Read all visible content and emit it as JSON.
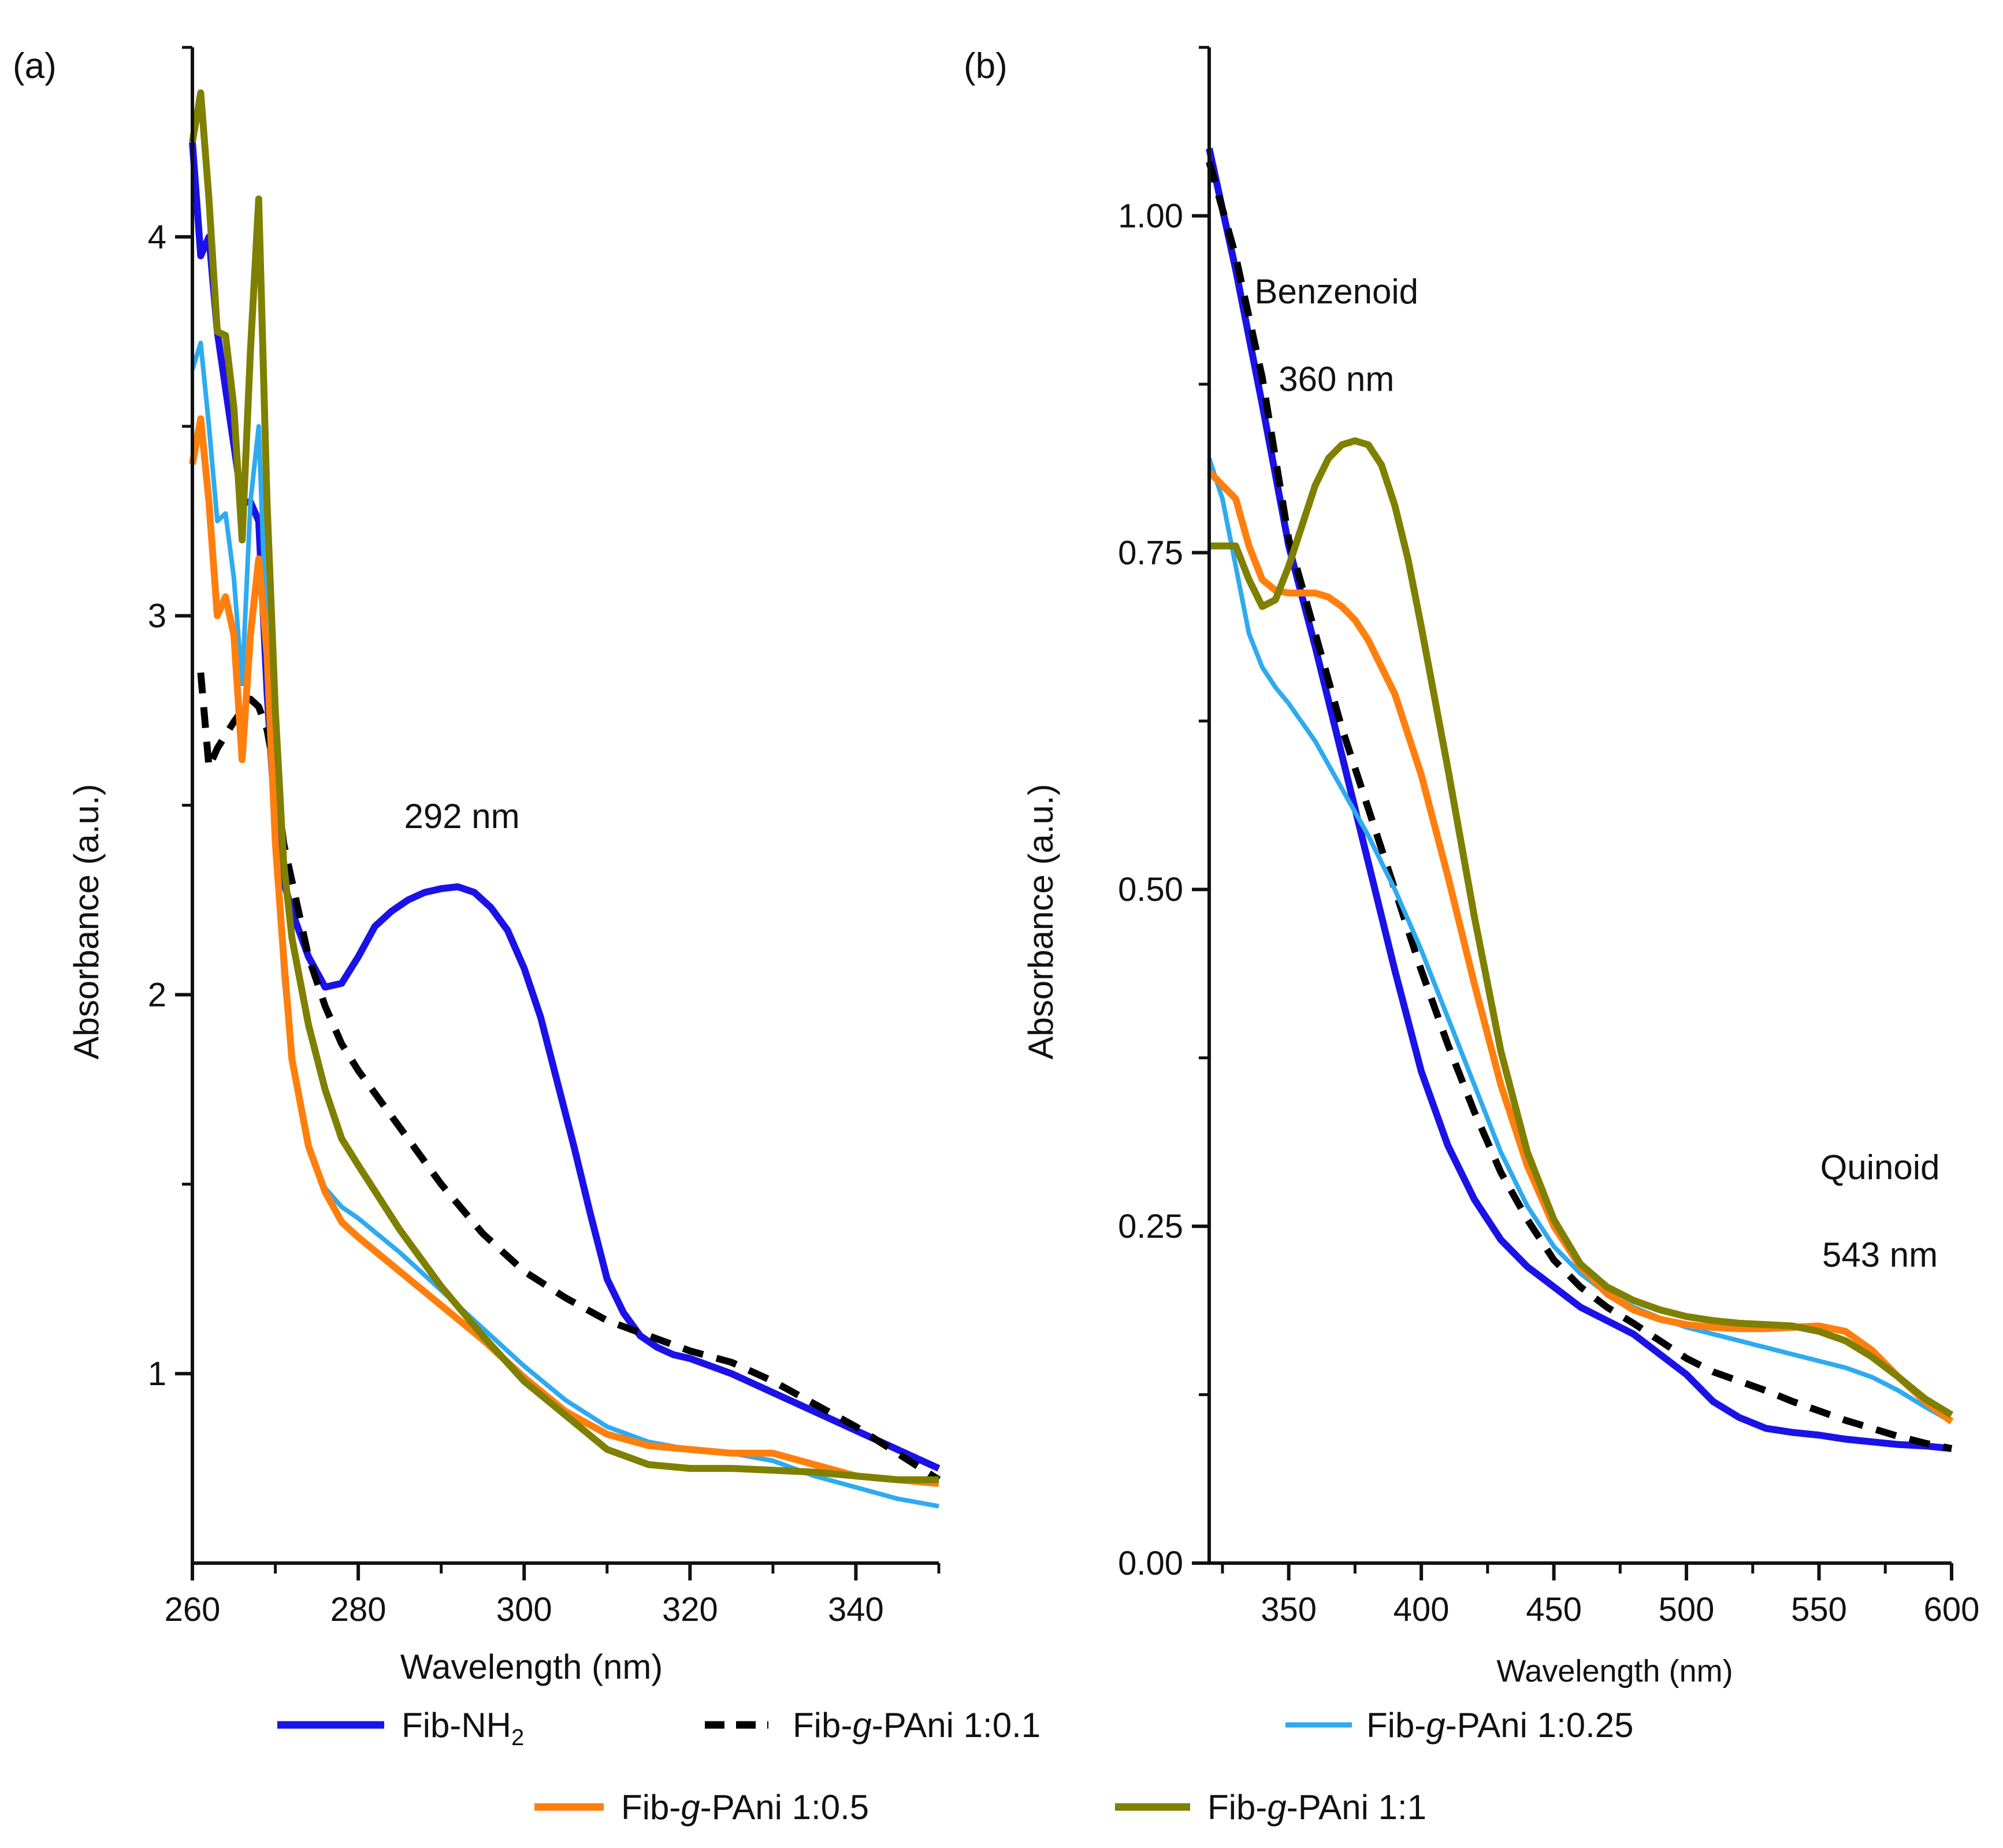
{
  "chart_data": [
    {
      "panel_label": "(a)",
      "type": "line",
      "xlabel": "Wavelength (nm)",
      "ylabel": "Absorbance (a.u.)",
      "xlim": [
        260,
        350
      ],
      "ylim": [
        0.5,
        4.5
      ],
      "x_major_ticks": [
        260,
        280,
        300,
        320,
        340
      ],
      "x_minor_ticks": [
        270,
        290,
        310,
        330,
        350
      ],
      "y_major_ticks": [
        1,
        2,
        3,
        4
      ],
      "y_minor_ticks": [
        1.5,
        2.5,
        3.5,
        4.5
      ],
      "x_tick_labels": [
        "260",
        "280",
        "300",
        "320",
        "340"
      ],
      "y_tick_labels": [
        "1",
        "2",
        "3",
        "4"
      ],
      "annotations": [
        {
          "text": "292 nm",
          "x": 292.5,
          "y": 2.44
        }
      ],
      "series": [
        {
          "name": "Fib-NH2",
          "x": [
            260,
            261,
            262,
            263,
            264,
            265,
            266,
            267,
            268,
            269,
            270,
            271,
            272,
            274,
            276,
            278,
            280,
            282,
            284,
            286,
            288,
            290,
            292,
            294,
            296,
            298,
            300,
            302,
            304,
            306,
            308,
            310,
            312,
            314,
            316,
            318,
            320,
            325,
            330,
            335,
            340,
            345,
            350
          ],
          "y": [
            4.25,
            3.95,
            4.0,
            3.75,
            3.6,
            3.45,
            3.3,
            3.3,
            3.25,
            2.8,
            2.45,
            2.3,
            2.22,
            2.1,
            2.02,
            2.03,
            2.1,
            2.18,
            2.22,
            2.25,
            2.27,
            2.28,
            2.285,
            2.27,
            2.23,
            2.17,
            2.07,
            1.94,
            1.77,
            1.6,
            1.42,
            1.25,
            1.16,
            1.1,
            1.07,
            1.05,
            1.04,
            1.0,
            0.95,
            0.9,
            0.85,
            0.8,
            0.75
          ]
        },
        {
          "name": "Fib-g-PAni 1:0.1",
          "x": [
            261,
            262,
            263,
            265,
            266,
            267,
            268,
            269,
            270,
            271,
            272,
            274,
            276,
            278,
            280,
            285,
            290,
            295,
            300,
            305,
            310,
            315,
            320,
            325,
            330,
            335,
            340,
            345,
            350
          ],
          "y": [
            2.85,
            2.6,
            2.65,
            2.72,
            2.75,
            2.78,
            2.76,
            2.7,
            2.58,
            2.4,
            2.3,
            2.1,
            1.97,
            1.87,
            1.8,
            1.65,
            1.5,
            1.37,
            1.27,
            1.2,
            1.14,
            1.1,
            1.06,
            1.03,
            0.98,
            0.92,
            0.86,
            0.79,
            0.72
          ]
        },
        {
          "name": "Fib-g-PAni 1:0.25",
          "x": [
            260,
            261,
            262,
            263,
            264,
            265,
            266,
            267,
            268,
            269,
            270,
            271,
            272,
            274,
            276,
            278,
            280,
            285,
            290,
            295,
            300,
            305,
            310,
            315,
            320,
            325,
            330,
            335,
            340,
            345,
            350
          ],
          "y": [
            3.65,
            3.72,
            3.5,
            3.25,
            3.27,
            3.1,
            2.82,
            3.3,
            3.5,
            2.9,
            2.4,
            2.05,
            1.82,
            1.6,
            1.49,
            1.44,
            1.41,
            1.32,
            1.22,
            1.12,
            1.02,
            0.93,
            0.86,
            0.82,
            0.8,
            0.79,
            0.77,
            0.73,
            0.7,
            0.67,
            0.65
          ]
        },
        {
          "name": "Fib-g-PAni 1:0.5",
          "x": [
            260,
            261,
            262,
            263,
            264,
            265,
            266,
            267,
            268,
            269,
            270,
            271,
            272,
            274,
            276,
            278,
            280,
            285,
            290,
            295,
            300,
            305,
            310,
            315,
            320,
            325,
            330,
            335,
            340,
            345,
            350
          ],
          "y": [
            3.4,
            3.52,
            3.3,
            3.0,
            3.05,
            2.95,
            2.62,
            2.95,
            3.15,
            2.9,
            2.4,
            2.1,
            1.83,
            1.6,
            1.48,
            1.4,
            1.36,
            1.27,
            1.18,
            1.09,
            0.99,
            0.9,
            0.84,
            0.81,
            0.8,
            0.79,
            0.79,
            0.76,
            0.73,
            0.72,
            0.71
          ]
        },
        {
          "name": "Fib-g-PAni 1:1",
          "x": [
            260,
            261,
            262,
            263,
            264,
            265,
            266,
            267,
            268,
            269,
            270,
            271,
            272,
            274,
            276,
            278,
            280,
            285,
            290,
            295,
            300,
            305,
            310,
            315,
            320,
            325,
            330,
            335,
            340,
            345,
            350
          ],
          "y": [
            4.25,
            4.38,
            4.1,
            3.75,
            3.74,
            3.55,
            3.2,
            3.7,
            4.1,
            3.3,
            2.75,
            2.35,
            2.15,
            1.92,
            1.75,
            1.62,
            1.55,
            1.38,
            1.23,
            1.1,
            0.98,
            0.89,
            0.8,
            0.76,
            0.75,
            0.75,
            0.745,
            0.74,
            0.73,
            0.72,
            0.72
          ]
        }
      ]
    },
    {
      "panel_label": "(b)",
      "type": "line",
      "xlabel": "Wavelength (nm)",
      "ylabel": "Absorbance (a.u.)",
      "xlim": [
        320,
        600
      ],
      "ylim": [
        0.0,
        1.125
      ],
      "x_major_ticks": [
        350,
        400,
        450,
        500,
        550,
        600
      ],
      "x_minor_ticks": [
        325,
        375,
        425,
        475,
        525,
        575
      ],
      "y_major_ticks": [
        0.0,
        0.25,
        0.5,
        0.75,
        1.0
      ],
      "y_minor_ticks": [
        0.125,
        0.375,
        0.625,
        0.875,
        1.125
      ],
      "x_tick_labels": [
        "350",
        "400",
        "450",
        "500",
        "550",
        "600"
      ],
      "y_tick_labels": [
        "0.00",
        "0.25",
        "0.50",
        "0.75",
        "1.00"
      ],
      "annotations": [
        {
          "text": "Benzenoid",
          "x": 368,
          "y": 0.935
        },
        {
          "text": "360 nm",
          "x": 368,
          "y": 0.87
        },
        {
          "text": "Quinoid",
          "x": 573,
          "y": 0.285
        },
        {
          "text": "543 nm",
          "x": 573,
          "y": 0.22
        }
      ],
      "series": [
        {
          "name": "Fib-NH2",
          "x": [
            320,
            330,
            340,
            350,
            360,
            370,
            380,
            390,
            400,
            410,
            420,
            430,
            440,
            450,
            460,
            470,
            480,
            490,
            500,
            510,
            520,
            530,
            540,
            550,
            560,
            570,
            580,
            590,
            600
          ],
          "y": [
            1.05,
            0.96,
            0.86,
            0.755,
            0.68,
            0.6,
            0.52,
            0.44,
            0.365,
            0.31,
            0.27,
            0.24,
            0.22,
            0.205,
            0.19,
            0.18,
            0.17,
            0.155,
            0.14,
            0.12,
            0.108,
            0.1,
            0.097,
            0.095,
            0.092,
            0.09,
            0.088,
            0.087,
            0.085
          ]
        },
        {
          "name": "Fib-g-PAni 1:0.1",
          "x": [
            320,
            330,
            340,
            350,
            360,
            370,
            380,
            390,
            400,
            410,
            420,
            430,
            440,
            450,
            460,
            470,
            480,
            490,
            500,
            510,
            520,
            530,
            540,
            550,
            560,
            570,
            580,
            590,
            600
          ],
          "y": [
            1.04,
            0.97,
            0.88,
            0.76,
            0.69,
            0.62,
            0.56,
            0.5,
            0.44,
            0.385,
            0.335,
            0.29,
            0.255,
            0.225,
            0.205,
            0.19,
            0.178,
            0.165,
            0.152,
            0.142,
            0.135,
            0.128,
            0.12,
            0.113,
            0.106,
            0.1,
            0.094,
            0.089,
            0.085
          ]
        },
        {
          "name": "Fib-g-PAni 1:0.25",
          "x": [
            320,
            325,
            330,
            335,
            340,
            345,
            350,
            360,
            370,
            380,
            390,
            400,
            410,
            420,
            430,
            440,
            450,
            460,
            470,
            480,
            490,
            500,
            510,
            520,
            530,
            540,
            550,
            560,
            570,
            580,
            590,
            600
          ],
          "y": [
            0.82,
            0.79,
            0.74,
            0.69,
            0.665,
            0.65,
            0.638,
            0.61,
            0.575,
            0.54,
            0.5,
            0.455,
            0.405,
            0.355,
            0.305,
            0.265,
            0.235,
            0.215,
            0.2,
            0.19,
            0.182,
            0.175,
            0.17,
            0.165,
            0.16,
            0.155,
            0.15,
            0.145,
            0.138,
            0.128,
            0.116,
            0.105
          ]
        },
        {
          "name": "Fib-g-PAni 1:0.5",
          "x": [
            320,
            325,
            330,
            335,
            340,
            345,
            350,
            355,
            360,
            365,
            370,
            375,
            380,
            390,
            400,
            410,
            420,
            430,
            440,
            450,
            460,
            470,
            480,
            490,
            500,
            510,
            520,
            530,
            540,
            550,
            560,
            570,
            580,
            590,
            600
          ],
          "y": [
            0.81,
            0.8,
            0.79,
            0.755,
            0.73,
            0.722,
            0.72,
            0.72,
            0.72,
            0.717,
            0.71,
            0.7,
            0.685,
            0.645,
            0.585,
            0.51,
            0.43,
            0.355,
            0.295,
            0.25,
            0.22,
            0.2,
            0.188,
            0.181,
            0.177,
            0.175,
            0.174,
            0.174,
            0.175,
            0.176,
            0.172,
            0.158,
            0.138,
            0.12,
            0.105
          ]
        },
        {
          "name": "Fib-g-PAni 1:1",
          "x": [
            320,
            325,
            330,
            335,
            340,
            345,
            350,
            355,
            360,
            365,
            370,
            375,
            380,
            385,
            390,
            395,
            400,
            410,
            420,
            430,
            440,
            450,
            460,
            470,
            480,
            490,
            500,
            510,
            520,
            530,
            540,
            550,
            560,
            570,
            580,
            590,
            600
          ],
          "y": [
            0.755,
            0.755,
            0.755,
            0.73,
            0.71,
            0.715,
            0.74,
            0.77,
            0.8,
            0.82,
            0.83,
            0.833,
            0.83,
            0.815,
            0.785,
            0.745,
            0.695,
            0.59,
            0.48,
            0.38,
            0.305,
            0.255,
            0.222,
            0.205,
            0.195,
            0.188,
            0.183,
            0.18,
            0.178,
            0.177,
            0.176,
            0.172,
            0.165,
            0.153,
            0.138,
            0.122,
            0.11
          ]
        }
      ]
    }
  ],
  "legend": {
    "placement": "bottom",
    "entries": [
      {
        "label": "Fib-NH",
        "subscript": "2",
        "color": "#1a12e6",
        "style": "solid"
      },
      {
        "label_pre": "Fib-",
        "label_ital": "g",
        "label_post": "-PAni 1:0.1",
        "color": "#000000",
        "style": "dashed"
      },
      {
        "label_pre": "Fib-",
        "label_ital": "g",
        "label_post": "-PAni 1:0.25",
        "color": "#2eaaf0",
        "style": "solid"
      },
      {
        "label_pre": "Fib-",
        "label_ital": "g",
        "label_post": "-PAni 1:0.5",
        "color": "#ff7f0e",
        "style": "solid"
      },
      {
        "label_pre": "Fib-",
        "label_ital": "g",
        "label_post": "-PAni 1:1",
        "color": "#7f7f00",
        "style": "solid"
      }
    ]
  },
  "colors": {
    "Fib-NH2": "#1a12e6",
    "Fib-g-PAni 1:0.1": "#000000",
    "Fib-g-PAni 1:0.25": "#2eaaf0",
    "Fib-g-PAni 1:0.5": "#ff7f0e",
    "Fib-g-PAni 1:1": "#7f7f00"
  }
}
